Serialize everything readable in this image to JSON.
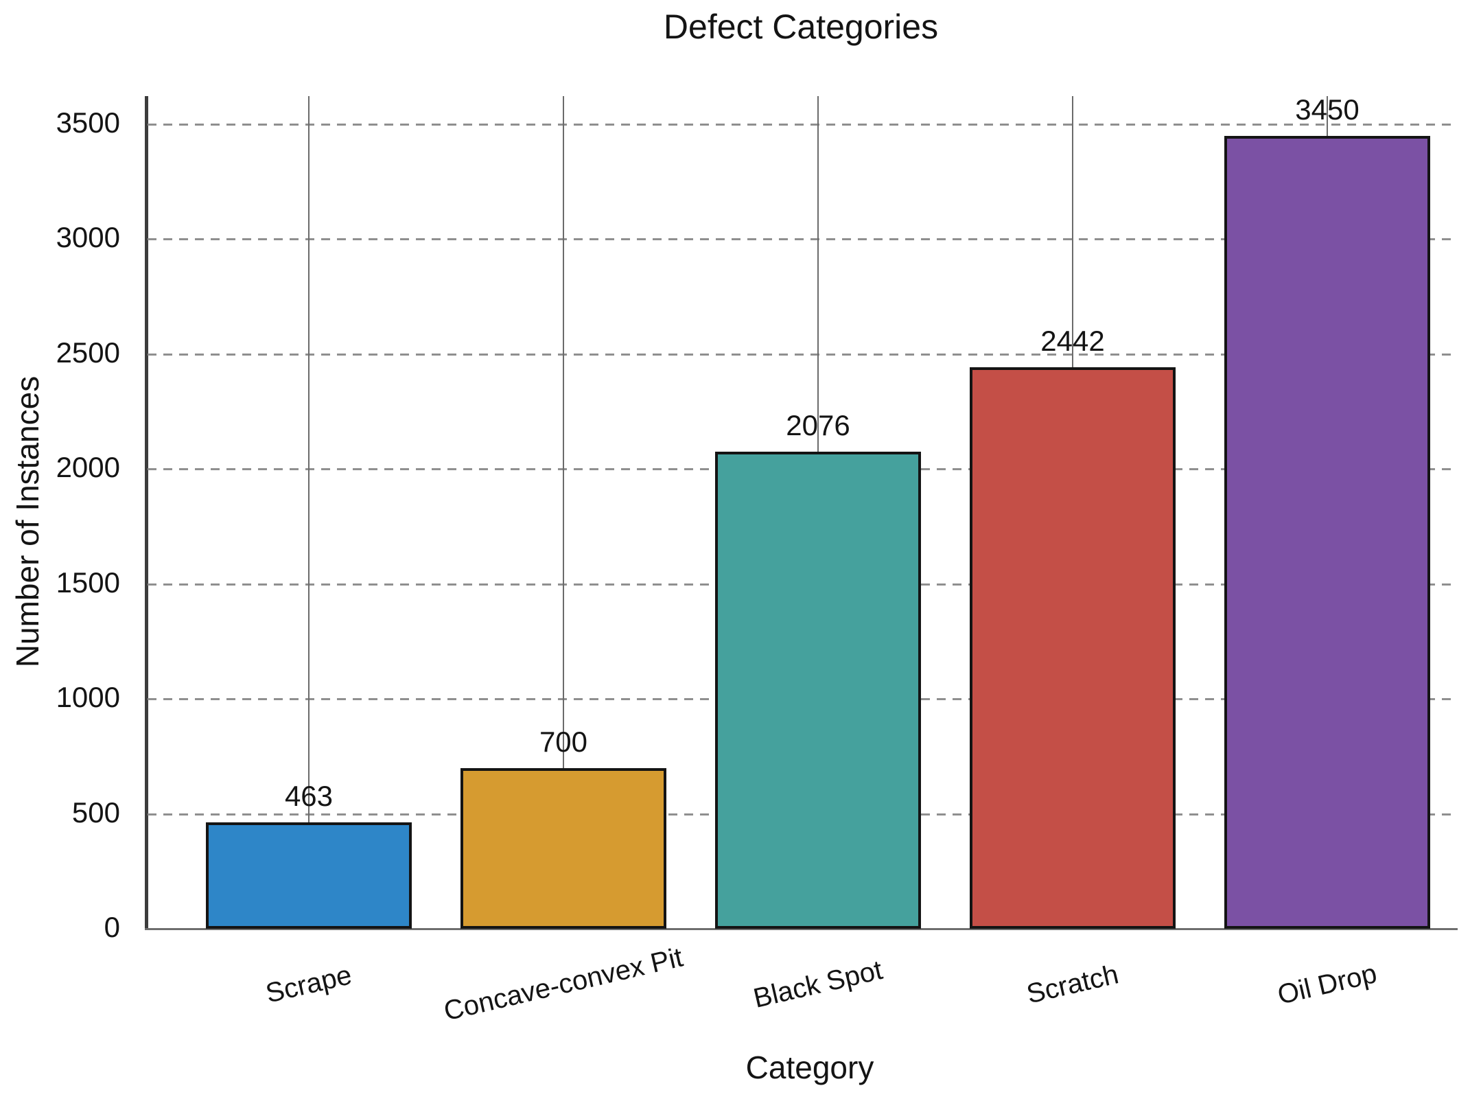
{
  "figure": {
    "background": "#ffffff"
  },
  "chart_data": {
    "type": "bar",
    "title": "Defect Categories",
    "xlabel": "Category",
    "ylabel": "Number of Instances",
    "categories": [
      "Scrape",
      "Concave-convex Pit",
      "Black Spot",
      "Scratch",
      "Oil Drop"
    ],
    "values": [
      463,
      700,
      2076,
      2442,
      3450
    ],
    "bar_colors": [
      "#2e86c8",
      "#d69b30",
      "#45a19d",
      "#c44f47",
      "#7b51a4"
    ],
    "bar_edge_color": "#141414",
    "yticks": [
      0,
      500,
      1000,
      1500,
      2000,
      2500,
      3000,
      3500
    ],
    "ylim": [
      0,
      3622
    ],
    "legend": "none",
    "grid": {
      "horizontal_style": "dashed",
      "horizontal_color": "#8f8f8f",
      "vertical_style": "solid",
      "vertical_color": "#6b6b6b"
    },
    "value_labels_shown": true
  }
}
